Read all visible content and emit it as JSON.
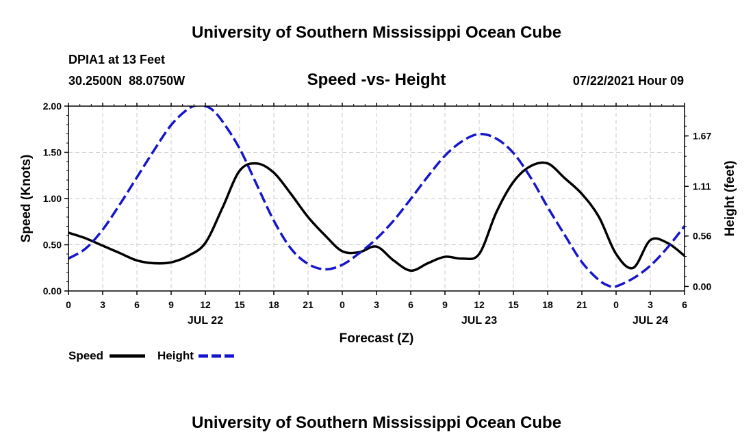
{
  "header": {
    "title": "University of Southern Mississippi Ocean Cube",
    "station": "DPIA1 at 13 Feet",
    "coords": "30.2500N  88.0750W",
    "chart_title": "Speed -vs- Height",
    "datetime": "07/22/2021 Hour 09"
  },
  "footer": {
    "title": "University of Southern Mississippi Ocean Cube"
  },
  "legend": {
    "speed_label": "Speed",
    "height_label": "Height"
  },
  "colors": {
    "speed": "#000000",
    "height": "#1515cc",
    "grid": "#c8c8c8"
  },
  "chart_data": {
    "type": "line",
    "title": "Speed -vs- Height",
    "xlabel": "Forecast (Z)",
    "ylabel": "Speed (Knots)",
    "y2label": "Height (feet)",
    "xlim": [
      0,
      54
    ],
    "ylim": [
      0,
      2
    ],
    "y2lim": [
      -0.05,
      2.0
    ],
    "x_ticks": [
      0,
      3,
      6,
      9,
      12,
      15,
      18,
      21,
      24,
      27,
      30,
      33,
      36,
      39,
      42,
      45,
      48,
      51,
      54
    ],
    "x_tick_labels": [
      "0",
      "3",
      "6",
      "9",
      "12",
      "15",
      "18",
      "21",
      "0",
      "3",
      "6",
      "9",
      "12",
      "15",
      "18",
      "21",
      "0",
      "3",
      "6"
    ],
    "date_labels": [
      {
        "x": 12,
        "text": "JUL 22"
      },
      {
        "x": 36,
        "text": "JUL 23"
      },
      {
        "x": 51,
        "text": "JUL 24"
      }
    ],
    "y_ticks": [
      0,
      0.5,
      1.0,
      1.5,
      2.0
    ],
    "y_tick_labels": [
      "0.00",
      "0.50",
      "1.00",
      "1.50",
      "2.00"
    ],
    "y2_ticks": [
      0.0,
      0.56,
      1.11,
      1.67
    ],
    "y2_tick_labels": [
      "0.00",
      "0.56",
      "1.11",
      "1.67"
    ],
    "grid": true,
    "series": [
      {
        "name": "Speed",
        "axis": "left",
        "style": "solid",
        "x": [
          0,
          1.5,
          3,
          4.5,
          6,
          7.5,
          9,
          10.5,
          12,
          13.5,
          15,
          16.5,
          18,
          19.5,
          21,
          22.5,
          24,
          25.5,
          27,
          28.5,
          30,
          31.5,
          33,
          34.5,
          36,
          37.5,
          39,
          40.5,
          42,
          43.5,
          45,
          46.5,
          48,
          49.5,
          51,
          52.5,
          54
        ],
        "values": [
          0.63,
          0.57,
          0.49,
          0.41,
          0.33,
          0.3,
          0.31,
          0.38,
          0.52,
          0.9,
          1.3,
          1.38,
          1.28,
          1.05,
          0.8,
          0.6,
          0.43,
          0.42,
          0.48,
          0.33,
          0.22,
          0.3,
          0.37,
          0.35,
          0.4,
          0.85,
          1.18,
          1.35,
          1.38,
          1.22,
          1.05,
          0.8,
          0.4,
          0.25,
          0.55,
          0.52,
          0.38
        ]
      },
      {
        "name": "Height",
        "axis": "right",
        "style": "dashed",
        "x": [
          0,
          1.5,
          3,
          4.5,
          6,
          7.5,
          9,
          10.5,
          11.5,
          12.5,
          13.5,
          15,
          16.5,
          18,
          19.5,
          21,
          22.5,
          24,
          25.5,
          27,
          28.5,
          30,
          31.5,
          33,
          34.5,
          36,
          37.5,
          39,
          40.5,
          42,
          43.5,
          45,
          46.5,
          47.5,
          48,
          49.5,
          51,
          52.5,
          54
        ],
        "values": [
          0.31,
          0.42,
          0.63,
          0.91,
          1.21,
          1.51,
          1.79,
          1.97,
          2.01,
          1.97,
          1.83,
          1.53,
          1.13,
          0.73,
          0.42,
          0.25,
          0.19,
          0.24,
          0.37,
          0.53,
          0.73,
          0.97,
          1.22,
          1.45,
          1.61,
          1.69,
          1.64,
          1.48,
          1.21,
          0.88,
          0.57,
          0.27,
          0.07,
          0.0,
          0.0,
          0.09,
          0.23,
          0.43,
          0.67
        ]
      }
    ]
  }
}
